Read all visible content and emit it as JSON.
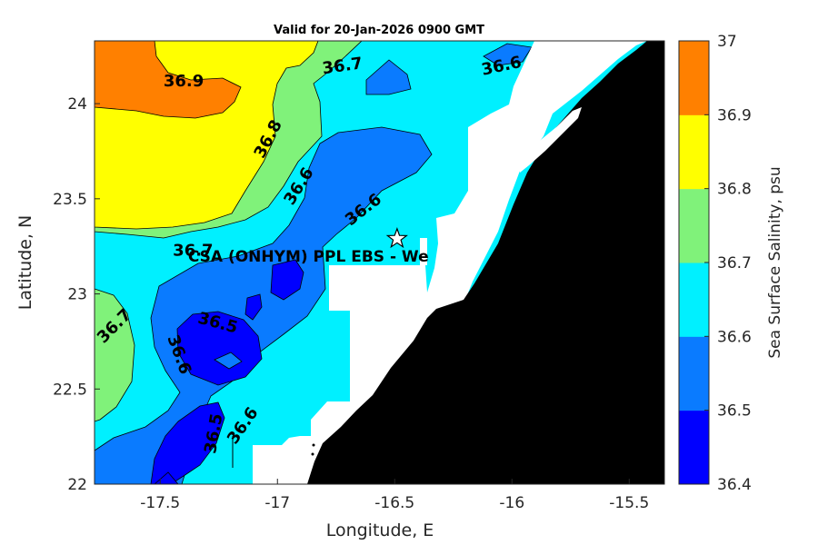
{
  "title": "Valid for 20-Jan-2026 0900 GMT",
  "xlabel": "Longitude, E",
  "ylabel": "Latitude, N",
  "colorbar_label": "Sea Surface Salinity, psu",
  "x_ticks": [
    "-17.5",
    "-17",
    "-16.5",
    "-16",
    "-15.5"
  ],
  "y_ticks": [
    "24",
    "23.5",
    "23",
    "22.5",
    "22"
  ],
  "colorbar_ticks": [
    "37",
    "36.9",
    "36.8",
    "36.7",
    "36.6",
    "36.5",
    "36.4"
  ],
  "site_label": "CSA (ONHYM) PPL EBS  - We",
  "chart_data": {
    "type": "contour-map",
    "title": "Valid for 20-Jan-2026 0900 GMT",
    "xlabel": "Longitude, E",
    "ylabel": "Latitude, N",
    "xlim": [
      -17.78,
      -15.35
    ],
    "ylim": [
      22.0,
      24.33
    ],
    "levels": [
      36.4,
      36.5,
      36.6,
      36.7,
      36.8,
      36.9,
      37.0
    ],
    "colors": [
      "#0000ff",
      "#0a7bff",
      "#00f0ff",
      "#80f27a",
      "#ffff00",
      "#ff8000"
    ],
    "contour_labels": [
      {
        "text": "36.9",
        "lon": -17.4,
        "lat": 24.12
      },
      {
        "text": "36.7",
        "lon": -16.72,
        "lat": 24.2
      },
      {
        "text": "36.6",
        "lon": -16.04,
        "lat": 24.2
      },
      {
        "text": "36.8",
        "lon": -17.02,
        "lat": 23.83
      },
      {
        "text": "36.6",
        "lon": -16.89,
        "lat": 23.58
      },
      {
        "text": "36.6",
        "lon": -16.62,
        "lat": 23.45
      },
      {
        "text": "36.7",
        "lon": -17.36,
        "lat": 23.23
      },
      {
        "text": "36.7",
        "lon": -17.68,
        "lat": 22.84
      },
      {
        "text": "36.5",
        "lon": -17.26,
        "lat": 22.85
      },
      {
        "text": "36.6",
        "lon": -17.44,
        "lat": 22.7
      },
      {
        "text": "36.6",
        "lon": -17.13,
        "lat": 22.32
      },
      {
        "text": "36.5",
        "lon": -17.25,
        "lat": 22.29
      }
    ],
    "site": {
      "name": "CSA (ONHYM) PPL EBS  - We",
      "lon": -16.49,
      "lat": 23.29
    }
  },
  "colors": {
    "land": "#000000",
    "nodata": "#ffffff",
    "contour_line": "#000000"
  }
}
